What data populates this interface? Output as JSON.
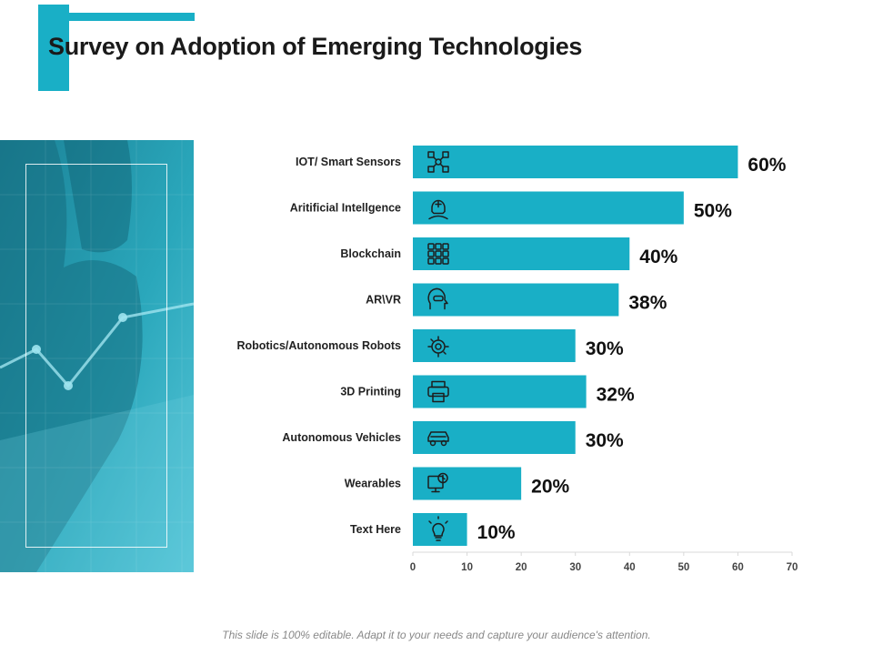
{
  "title": "Survey on Adoption of Emerging Technologies",
  "footer": "This slide is 100% editable. Adapt it to your needs and capture your audience's attention.",
  "colors": {
    "accent": "#19afc6",
    "bar": "#19afc6",
    "photo_dark": "#1a7f92",
    "photo_light": "#5ec9db"
  },
  "chart_data": {
    "type": "bar",
    "orientation": "horizontal",
    "title": "Survey on Adoption of Emerging Technologies",
    "xlabel": "",
    "ylabel": "",
    "xlim": [
      0,
      70
    ],
    "xticks": [
      "0",
      "10",
      "20",
      "30",
      "40",
      "50",
      "60",
      "70"
    ],
    "categories": [
      "IOT/ Smart Sensors",
      "Aritificial Intellgence",
      "Blockchain",
      "AR\\VR",
      "Robotics/Autonomous Robots",
      "3D Printing",
      "Autonomous Vehicles",
      "Wearables",
      "Text Here"
    ],
    "values": [
      60,
      50,
      40,
      38,
      30,
      32,
      30,
      20,
      10
    ],
    "value_labels": [
      "60%",
      "50%",
      "40%",
      "38%",
      "30%",
      "32%",
      "30%",
      "20%",
      "10%"
    ],
    "icons": [
      "network-icon",
      "ai-head-icon",
      "blockchain-grid-icon",
      "vr-head-icon",
      "robot-gear-icon",
      "printer-icon",
      "car-icon",
      "smartwatch-monitor-icon",
      "lightbulb-icon"
    ]
  }
}
